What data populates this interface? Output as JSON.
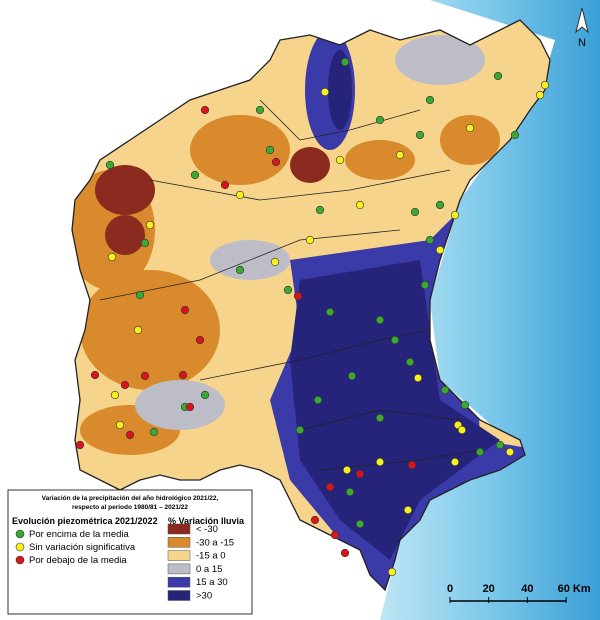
{
  "legend": {
    "title_lines": [
      "Variación de la precipitación del año hidrológico 2021/22,",
      "respecto al  periodo 1980/81 – 2021/22"
    ],
    "piezo_heading": "Evolución piezométrica 2021/2022",
    "piezo_items": [
      {
        "label": "Por encima de la media",
        "color": "#3aa832"
      },
      {
        "label": "Sin variación significativa",
        "color": "#f5f01e"
      },
      {
        "label": "Por debajo de la media",
        "color": "#d8141c"
      }
    ],
    "rain_heading": "% Variación lluvia",
    "rain_items": [
      {
        "label": "< -30",
        "color": "#8b2a1f"
      },
      {
        "label": "-30 a -15",
        "color": "#d98a2c"
      },
      {
        "label": "-15 a 0",
        "color": "#f6d48c"
      },
      {
        "label": "0 a 15",
        "color": "#bdbdc8"
      },
      {
        "label": "15 a 30",
        "color": "#3a3aa8"
      },
      {
        "label": ">30",
        "color": "#25237a"
      }
    ]
  },
  "scale": {
    "labels": [
      "0",
      "20",
      "40",
      "60 Km"
    ]
  },
  "north": "N"
}
